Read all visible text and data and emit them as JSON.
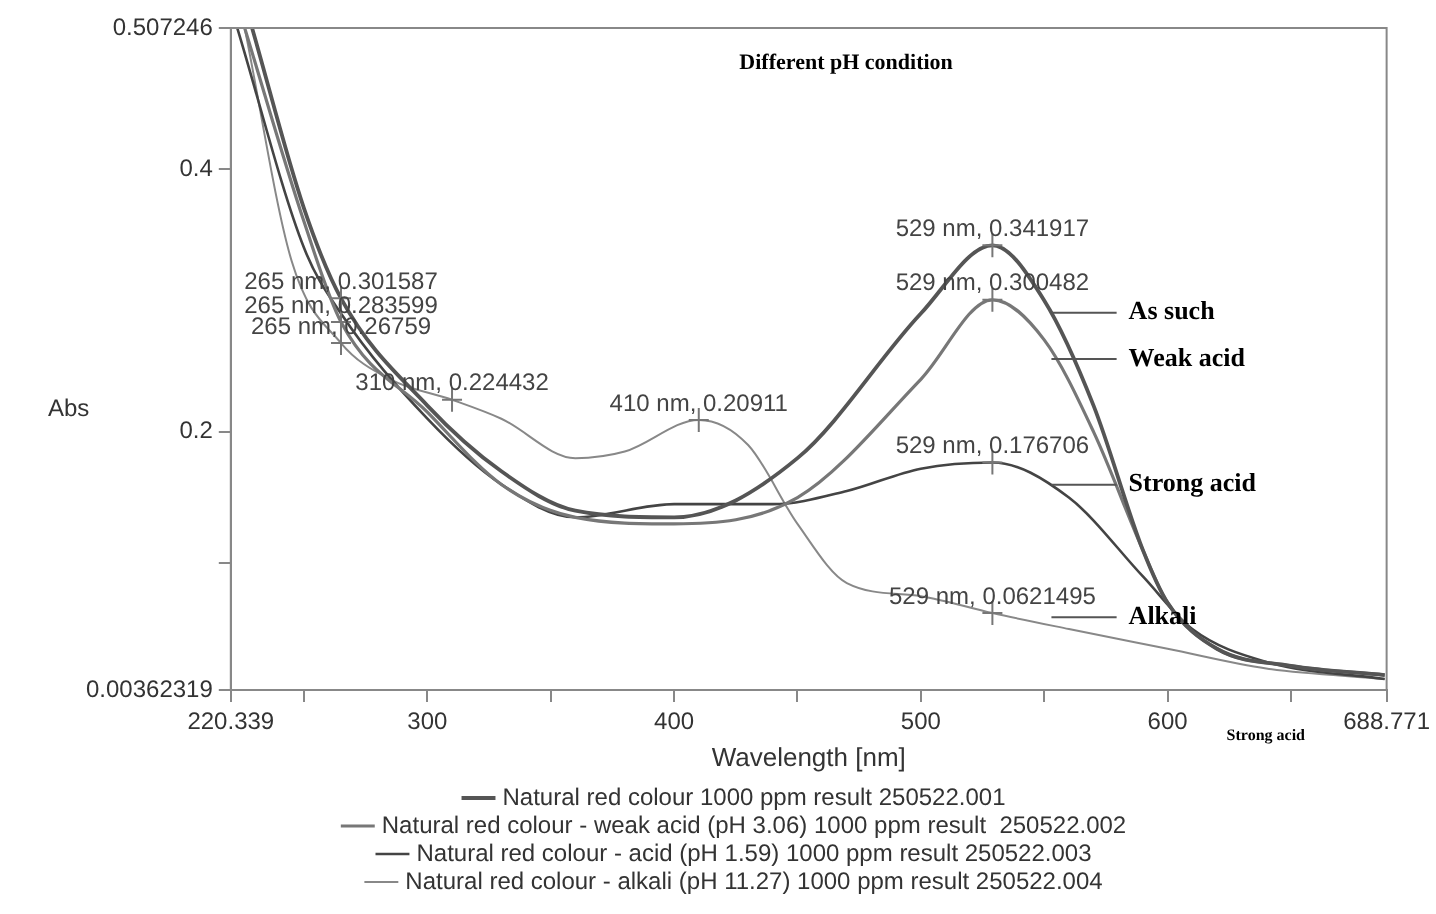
{
  "chart_data": {
    "type": "line",
    "title": "Different pH condition",
    "xlabel": "Wavelength [nm]",
    "ylabel": "Abs",
    "xlim": [
      220.339,
      688.771
    ],
    "xticks": [
      220.339,
      {
        "value": 250,
        "label": null
      },
      300,
      {
        "value": 350,
        "label": null
      },
      400,
      {
        "value": 450,
        "label": null
      },
      500,
      {
        "value": 550,
        "label": null
      },
      600,
      {
        "value": 650,
        "label": null
      },
      688.771
    ],
    "ylim": [
      0.00362319,
      0.507246
    ],
    "yticks": [
      0.00362319,
      {
        "value": 0.1,
        "label": null
      },
      0.2,
      0.4,
      0.507246
    ],
    "grid": false,
    "legend": "bottom",
    "marker": "none",
    "line_style": "solid",
    "series": [
      {
        "name": "Natural red colour 1000 ppm result 250522.001",
        "color": "#555555",
        "x": [
          229,
          250,
          265,
          300,
          330,
          360,
          400,
          450,
          500,
          529,
          550,
          570,
          590,
          600,
          620,
          650,
          688
        ],
        "values": [
          0.507,
          0.37,
          0.301587,
          0.22,
          0.17,
          0.14,
          0.135,
          0.18,
          0.29,
          0.341917,
          0.3,
          0.22,
          0.11,
          0.07,
          0.035,
          0.022,
          0.015
        ]
      },
      {
        "name": "Natural red colour - weak acid (pH 3.06) 1000 ppm result  250522.002",
        "color": "#777777",
        "x": [
          226,
          250,
          265,
          300,
          330,
          360,
          400,
          450,
          500,
          529,
          550,
          570,
          590,
          600,
          620,
          650,
          688
        ],
        "values": [
          0.507,
          0.36,
          0.283599,
          0.215,
          0.16,
          0.135,
          0.13,
          0.15,
          0.24,
          0.300482,
          0.27,
          0.2,
          0.11,
          0.07,
          0.035,
          0.022,
          0.015
        ]
      },
      {
        "name": "Natural red colour - acid (pH 1.59) 1000 ppm result 250522.003",
        "color": "#444444",
        "x": [
          223,
          250,
          265,
          300,
          330,
          360,
          400,
          440,
          470,
          500,
          529,
          560,
          590,
          610,
          640,
          688
        ],
        "values": [
          0.507,
          0.34,
          0.29,
          0.21,
          0.16,
          0.135,
          0.145,
          0.145,
          0.155,
          0.172,
          0.176706,
          0.15,
          0.09,
          0.05,
          0.025,
          0.012
        ]
      },
      {
        "name": "Natural red colour - alkali (pH 11.27) 1000 ppm result 250522.004",
        "color": "#888888",
        "x": [
          226,
          245,
          265,
          285,
          310,
          330,
          360,
          380,
          410,
          430,
          450,
          470,
          500,
          529,
          560,
          600,
          640,
          688
        ],
        "values": [
          0.507,
          0.33,
          0.26759,
          0.24,
          0.224432,
          0.21,
          0.18,
          0.185,
          0.20911,
          0.19,
          0.13,
          0.085,
          0.075,
          0.0621495,
          0.05,
          0.035,
          0.02,
          0.012
        ]
      }
    ],
    "annotations": [
      {
        "text": "265 nm, 0.301587",
        "x": 265,
        "y": 0.301587
      },
      {
        "text": "265 nm, 0.283599",
        "x": 265,
        "y": 0.283599
      },
      {
        "text": "265 nm, 0.26759",
        "x": 265,
        "y": 0.26759
      },
      {
        "text": "310 nm, 0.224432",
        "x": 310,
        "y": 0.224432
      },
      {
        "text": "410 nm, 0.20911",
        "x": 410,
        "y": 0.20911
      },
      {
        "text": "529 nm, 0.341917",
        "x": 529,
        "y": 0.341917
      },
      {
        "text": "529 nm, 0.300482",
        "x": 529,
        "y": 0.300482
      },
      {
        "text": "529 nm, 0.176706",
        "x": 529,
        "y": 0.176706
      },
      {
        "text": "529 nm, 0.0621495",
        "x": 529,
        "y": 0.0621495
      },
      "As such",
      "Weak acid",
      "Strong acid",
      "Alkali",
      "Strong acid"
    ]
  }
}
